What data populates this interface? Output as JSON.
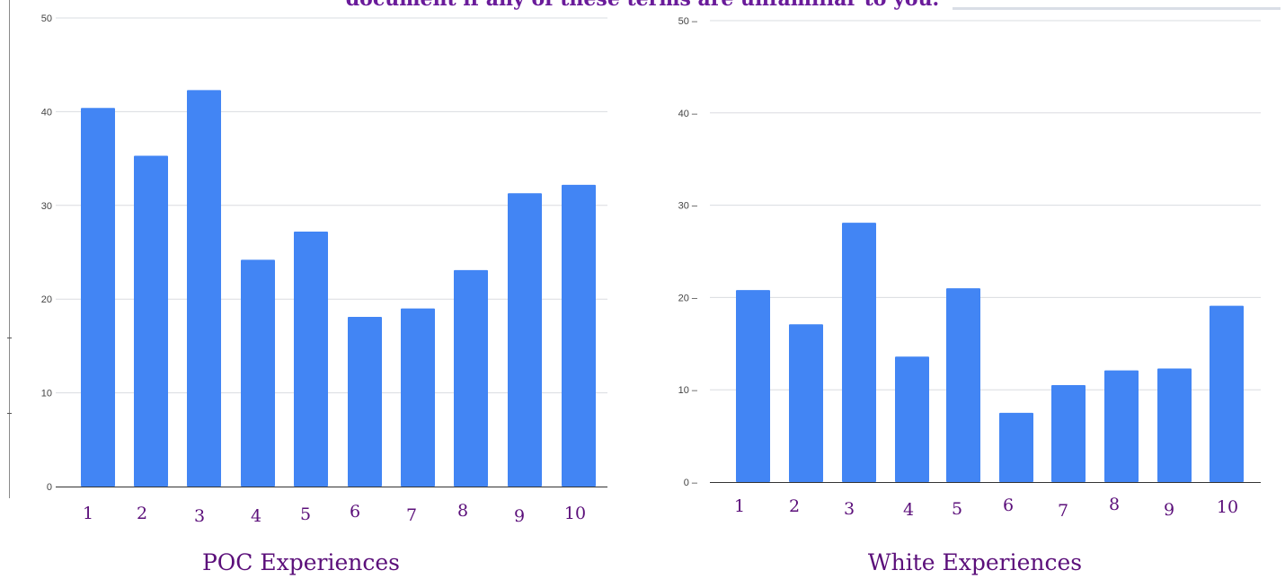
{
  "header": {
    "text": "document if any of these terms are unfamiliar to you."
  },
  "colors": {
    "bar": "#4285f4",
    "title": "#5b0f7a",
    "grid": "#dadce0",
    "axis": "#333333"
  },
  "chart_data": [
    {
      "type": "bar",
      "title": "POC Experiences",
      "categories": [
        "1",
        "2",
        "3",
        "4",
        "5",
        "6",
        "7",
        "8",
        "9",
        "10"
      ],
      "values": [
        40.4,
        35.3,
        42.3,
        24.2,
        27.2,
        18.1,
        19.0,
        23.1,
        31.3,
        32.2
      ],
      "yticks": [
        "0",
        "10",
        "20",
        "30",
        "40",
        "50"
      ],
      "ylim": [
        0,
        50
      ],
      "grid": true,
      "legend": "none"
    },
    {
      "type": "bar",
      "title": "White Experiences",
      "categories": [
        "1",
        "2",
        "3",
        "4",
        "5",
        "6",
        "7",
        "8",
        "9",
        "10"
      ],
      "values": [
        20.8,
        17.1,
        28.1,
        13.6,
        21.0,
        7.5,
        10.5,
        12.1,
        12.3,
        19.1
      ],
      "yticks": [
        "0",
        "10",
        "20",
        "30",
        "40",
        "50"
      ],
      "ylim": [
        0,
        50
      ],
      "grid": true,
      "legend": "none"
    }
  ]
}
